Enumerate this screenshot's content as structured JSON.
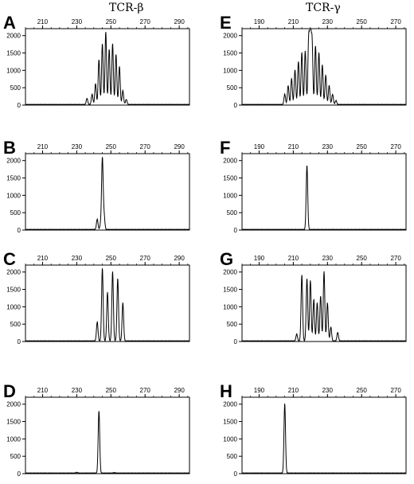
{
  "column_titles": [
    "TCR-β",
    "TCR-γ"
  ],
  "chart_data": [
    {
      "panel": "A",
      "type": "line",
      "xlim": [
        200,
        296
      ],
      "xticks": [
        210,
        230,
        250,
        270,
        290
      ],
      "ylim": [
        0,
        2200
      ],
      "yticks": [
        0,
        500,
        1000,
        1500,
        2000
      ],
      "peaks": [
        [
          236,
          180
        ],
        [
          239,
          300
        ],
        [
          241,
          600
        ],
        [
          243,
          1300
        ],
        [
          245,
          1750
        ],
        [
          247,
          2100
        ],
        [
          249,
          1600
        ],
        [
          251,
          1750
        ],
        [
          253,
          1450
        ],
        [
          255,
          1100
        ],
        [
          257,
          400
        ],
        [
          259,
          150
        ]
      ]
    },
    {
      "panel": "B",
      "type": "line",
      "xlim": [
        200,
        296
      ],
      "xticks": [
        210,
        230,
        250,
        270,
        290
      ],
      "ylim": [
        0,
        2200
      ],
      "yticks": [
        0,
        500,
        1000,
        1500,
        2000
      ],
      "peaks": [
        [
          242,
          300
        ],
        [
          244,
          150
        ],
        [
          245,
          2050
        ],
        [
          246,
          400
        ]
      ]
    },
    {
      "panel": "C",
      "type": "line",
      "xlim": [
        200,
        296
      ],
      "xticks": [
        210,
        230,
        250,
        270,
        290
      ],
      "ylim": [
        0,
        2200
      ],
      "yticks": [
        0,
        500,
        1000,
        1500,
        2000
      ],
      "peaks": [
        [
          242,
          550
        ],
        [
          245,
          2100
        ],
        [
          248,
          1400
        ],
        [
          251,
          2000
        ],
        [
          254,
          1800
        ],
        [
          257,
          1100
        ]
      ]
    },
    {
      "panel": "D",
      "type": "line",
      "xlim": [
        200,
        296
      ],
      "xticks": [
        210,
        230,
        250,
        270,
        290
      ],
      "ylim": [
        0,
        2200
      ],
      "yticks": [
        0,
        500,
        1000,
        1500,
        2000
      ],
      "peaks": [
        [
          230,
          20
        ],
        [
          243,
          1800
        ],
        [
          252,
          15
        ]
      ]
    },
    {
      "panel": "E",
      "type": "line",
      "xlim": [
        180,
        276
      ],
      "xticks": [
        190,
        210,
        230,
        250,
        270
      ],
      "ylim": [
        0,
        2200
      ],
      "yticks": [
        0,
        500,
        1000,
        1500,
        2000
      ],
      "peaks": [
        [
          205,
          300
        ],
        [
          207,
          550
        ],
        [
          209,
          750
        ],
        [
          211,
          1000
        ],
        [
          213,
          1250
        ],
        [
          215,
          1500
        ],
        [
          217,
          1550
        ],
        [
          219,
          1850
        ],
        [
          220,
          2100
        ],
        [
          221,
          1800
        ],
        [
          223,
          1700
        ],
        [
          225,
          1500
        ],
        [
          227,
          1150
        ],
        [
          229,
          850
        ],
        [
          231,
          550
        ],
        [
          233,
          300
        ],
        [
          235,
          120
        ]
      ]
    },
    {
      "panel": "F",
      "type": "line",
      "xlim": [
        180,
        276
      ],
      "xticks": [
        190,
        210,
        230,
        250,
        270
      ],
      "ylim": [
        0,
        2200
      ],
      "yticks": [
        0,
        500,
        1000,
        1500,
        2000
      ],
      "peaks": [
        [
          218,
          1850
        ]
      ]
    },
    {
      "panel": "G",
      "type": "line",
      "xlim": [
        180,
        276
      ],
      "xticks": [
        190,
        210,
        230,
        250,
        270
      ],
      "ylim": [
        0,
        2200
      ],
      "yticks": [
        0,
        500,
        1000,
        1500,
        2000
      ],
      "peaks": [
        [
          212,
          200
        ],
        [
          215,
          1900
        ],
        [
          218,
          1800
        ],
        [
          220,
          1750
        ],
        [
          222,
          1200
        ],
        [
          224,
          1100
        ],
        [
          226,
          1300
        ],
        [
          228,
          2000
        ],
        [
          230,
          1100
        ],
        [
          232,
          400
        ],
        [
          236,
          250
        ]
      ]
    },
    {
      "panel": "H",
      "type": "line",
      "xlim": [
        180,
        276
      ],
      "xticks": [
        190,
        210,
        230,
        250,
        270
      ],
      "ylim": [
        0,
        2200
      ],
      "yticks": [
        0,
        500,
        1000,
        1500,
        2000
      ],
      "peaks": [
        [
          205,
          2000
        ]
      ]
    }
  ]
}
